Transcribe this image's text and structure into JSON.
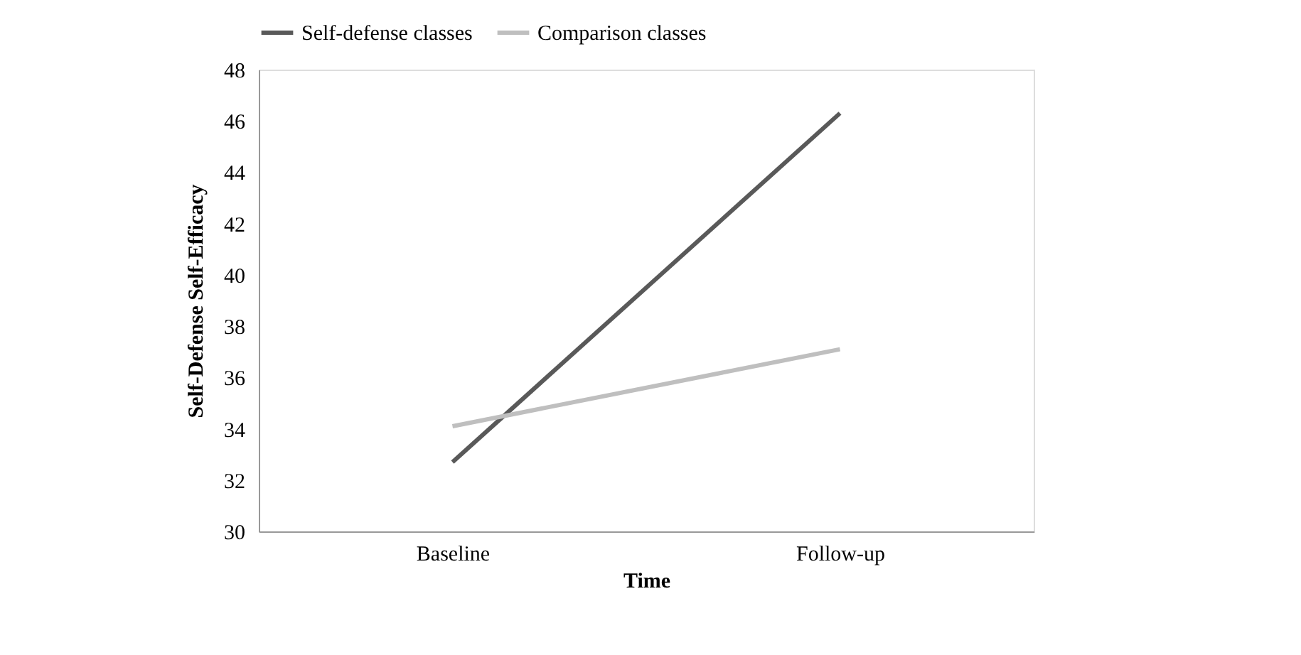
{
  "chart_data": {
    "type": "line",
    "xlabel": "Time",
    "ylabel": "Self-Defense Self-Efficacy",
    "categories": [
      "Baseline",
      "Follow-up"
    ],
    "series": [
      {
        "name": "Self-defense classes",
        "color": "#595959",
        "values": [
          32.7,
          46.3
        ]
      },
      {
        "name": "Comparison classes",
        "color": "#bfbfbf",
        "values": [
          34.1,
          37.1
        ]
      }
    ],
    "ylim": [
      30,
      48
    ],
    "yticks": [
      30,
      32,
      34,
      36,
      38,
      40,
      42,
      44,
      46,
      48
    ],
    "grid": false,
    "legend": "top",
    "marker": "none",
    "line_style": "solid"
  }
}
